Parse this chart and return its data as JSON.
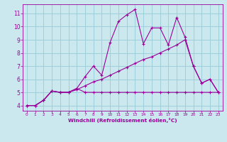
{
  "xlabel": "Windchill (Refroidissement éolien,°C)",
  "background_color": "#cce8ef",
  "grid_color": "#9dcfda",
  "line_color": "#990099",
  "xlim": [
    -0.5,
    23.5
  ],
  "ylim": [
    3.6,
    11.7
  ],
  "xticks": [
    0,
    1,
    2,
    3,
    4,
    5,
    6,
    7,
    8,
    9,
    10,
    11,
    12,
    13,
    14,
    15,
    16,
    17,
    18,
    19,
    20,
    21,
    22,
    23
  ],
  "yticks": [
    4,
    5,
    6,
    7,
    8,
    9,
    10,
    11
  ],
  "line1_x": [
    0,
    1,
    2,
    3,
    4,
    5,
    6,
    7,
    8,
    9,
    10,
    11,
    12,
    13,
    14,
    15,
    16,
    17,
    18,
    19,
    20,
    21,
    22,
    23
  ],
  "line1_y": [
    4.0,
    4.0,
    4.4,
    5.1,
    5.0,
    5.0,
    5.3,
    5.0,
    5.0,
    5.0,
    5.0,
    5.0,
    5.0,
    5.0,
    5.0,
    5.0,
    5.0,
    5.0,
    5.0,
    5.0,
    5.0,
    5.0,
    5.0,
    5.0
  ],
  "line2_x": [
    0,
    1,
    2,
    3,
    4,
    5,
    6,
    7,
    8,
    9,
    10,
    11,
    12,
    13,
    14,
    15,
    16,
    17,
    18,
    19,
    20,
    21,
    22,
    23
  ],
  "line2_y": [
    4.0,
    4.0,
    4.4,
    5.1,
    5.0,
    5.0,
    5.3,
    6.2,
    7.0,
    6.3,
    8.8,
    10.4,
    10.9,
    11.3,
    8.7,
    9.9,
    9.9,
    8.6,
    10.7,
    9.2,
    7.0,
    5.7,
    6.0,
    5.0
  ],
  "line3_x": [
    0,
    1,
    2,
    3,
    4,
    5,
    6,
    7,
    8,
    9,
    10,
    11,
    12,
    13,
    14,
    15,
    16,
    17,
    18,
    19,
    20,
    21,
    22,
    23
  ],
  "line3_y": [
    4.0,
    4.0,
    4.4,
    5.1,
    5.0,
    5.0,
    5.2,
    5.5,
    5.8,
    6.0,
    6.3,
    6.6,
    6.9,
    7.2,
    7.5,
    7.7,
    8.0,
    8.3,
    8.6,
    9.0,
    7.0,
    5.7,
    6.0,
    5.0
  ]
}
